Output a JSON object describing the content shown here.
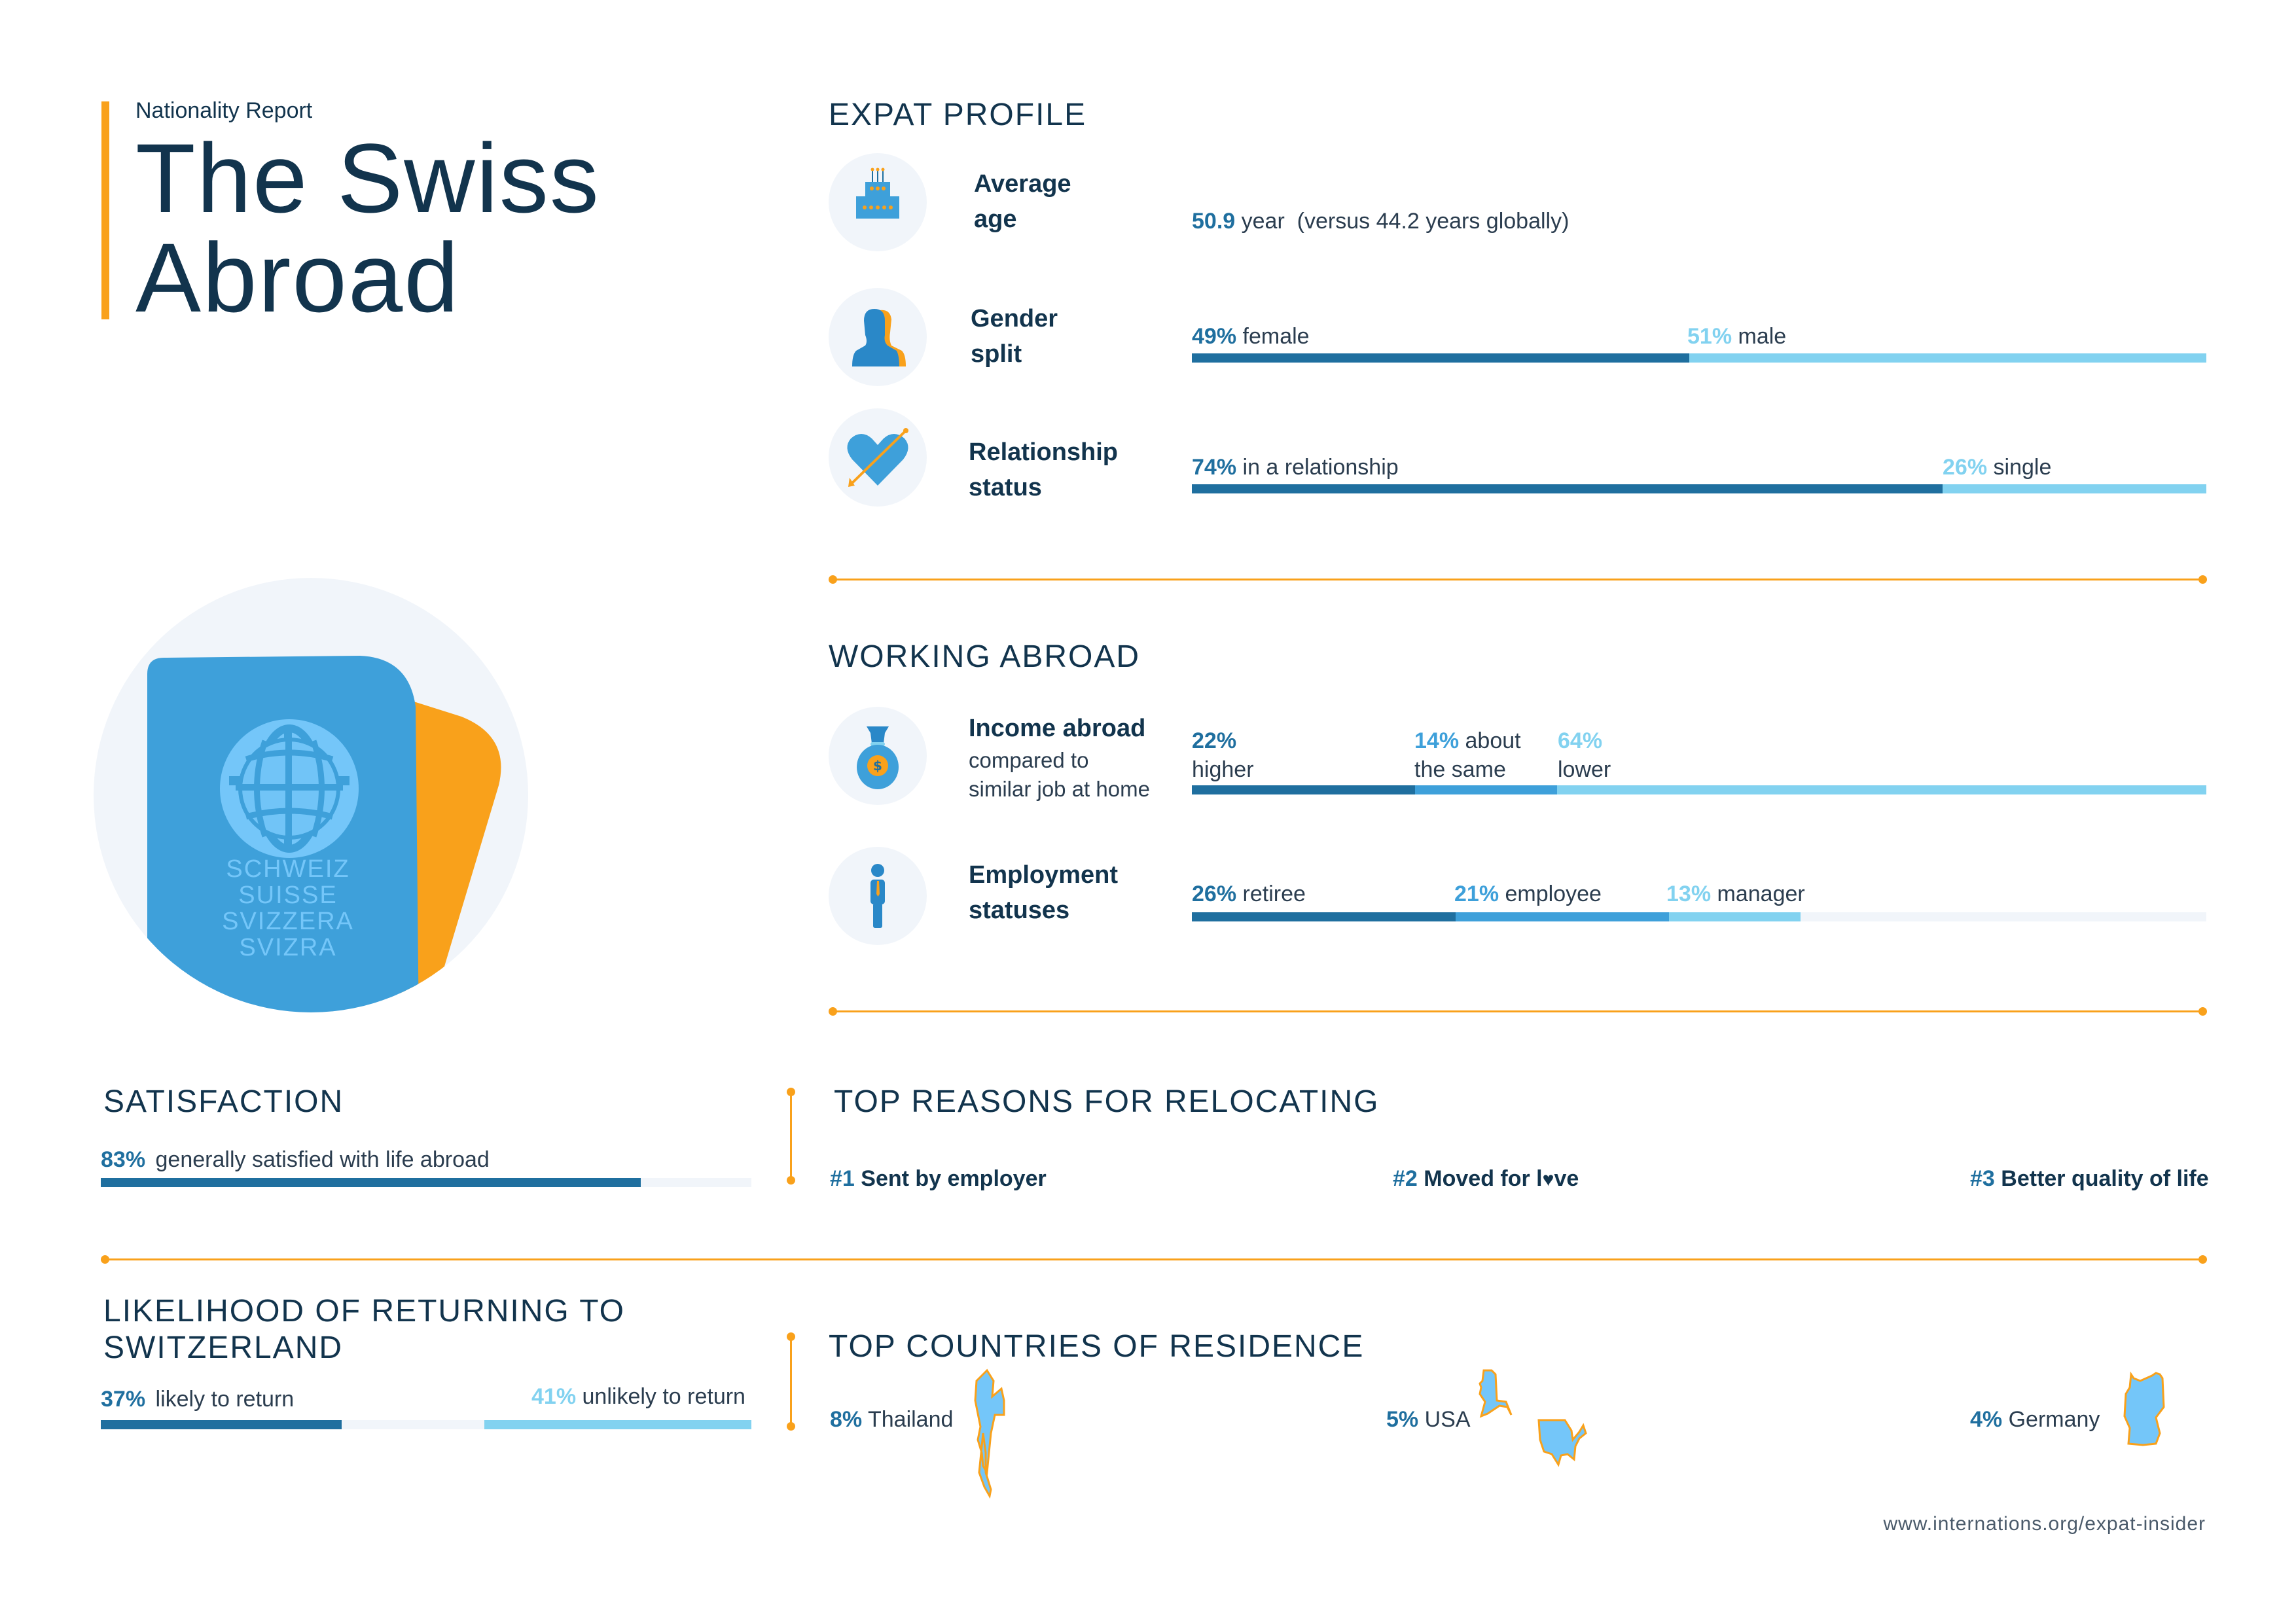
{
  "header": {
    "kicker": "Nationality Report",
    "title_line1": "The Swiss",
    "title_line2": "Abroad"
  },
  "passport": {
    "lines": [
      "SCHWEIZ",
      "SUISSE",
      "SVIZZERA",
      "SVIZRA"
    ],
    "icon": "globe-icon"
  },
  "colors": {
    "navy": "#12344d",
    "dark_blue": "#1f6f9f",
    "mid_blue": "#3ea0da",
    "light_blue": "#82d2f0",
    "orange": "#f9a11b",
    "light_gray": "#f1f5fa"
  },
  "expat_profile": {
    "title": "EXPAT PROFILE",
    "average_age": {
      "icon": "birthday-cake-icon",
      "label_line1": "Average",
      "label_line2": "age",
      "value": "50.9",
      "text": "year  (versus 44.2 years globally)"
    },
    "gender_split": {
      "icon": "woman-man-silhouette-icon",
      "label_line1": "Gender",
      "label_line2": "split",
      "segments": [
        {
          "pct": "49%",
          "label": "female",
          "value": 49
        },
        {
          "pct": "51%",
          "label": "male",
          "value": 51
        }
      ]
    },
    "relationship": {
      "icon": "heart-arrow-icon",
      "label_line1": "Relationship",
      "label_line2": "status",
      "segments": [
        {
          "pct": "74%",
          "label": "in a relationship",
          "value": 74
        },
        {
          "pct": "26%",
          "label": "single",
          "value": 26
        }
      ]
    }
  },
  "working_abroad": {
    "title": "WORKING ABROAD",
    "income": {
      "icon": "money-bag-icon",
      "label": "Income abroad",
      "sub_line1": "compared to",
      "sub_line2": "similar job at home",
      "segments": [
        {
          "pct": "22%",
          "label_inline": "",
          "label_below": "higher",
          "value": 22
        },
        {
          "pct": "14%",
          "label_inline": "about",
          "label_below": "the same",
          "value": 14
        },
        {
          "pct": "64%",
          "label_inline": "",
          "label_below": "lower",
          "value": 64
        }
      ]
    },
    "employment": {
      "icon": "businessperson-icon",
      "label_line1": "Employment",
      "label_line2": "statuses",
      "segments": [
        {
          "pct": "26%",
          "label": "retiree",
          "value": 26
        },
        {
          "pct": "21%",
          "label": "employee",
          "value": 21
        },
        {
          "pct": "13%",
          "label": "manager",
          "value": 13
        }
      ]
    }
  },
  "satisfaction": {
    "title": "SATISFACTION",
    "pct": "83%",
    "text": "generally satisfied with life abroad",
    "value": 83
  },
  "top_reasons": {
    "title": "TOP REASONS FOR RELOCATING",
    "items": [
      {
        "rank": "#1",
        "text": "Sent by employer"
      },
      {
        "rank": "#2",
        "text_before": "Moved for l",
        "text_after": "ve",
        "heart": "heart-icon"
      },
      {
        "rank": "#3",
        "text": "Better quality of life"
      }
    ]
  },
  "returning": {
    "title_line1": "LIKELIHOOD OF RETURNING TO",
    "title_line2": "SWITZERLAND",
    "likely": {
      "pct": "37%",
      "text": "likely to return",
      "value": 37
    },
    "unlikely": {
      "pct": "41%",
      "text": "unlikely to return",
      "value": 41
    }
  },
  "top_countries": {
    "title": "TOP COUNTRIES OF RESIDENCE",
    "items": [
      {
        "pct": "8%",
        "name": "Thailand",
        "icon": "thailand-map-icon"
      },
      {
        "pct": "5%",
        "name": "USA",
        "icon": "usa-map-icon"
      },
      {
        "pct": "4%",
        "name": "Germany",
        "icon": "germany-map-icon"
      }
    ]
  },
  "footer": {
    "url": "www.internations.org/expat-insider"
  }
}
